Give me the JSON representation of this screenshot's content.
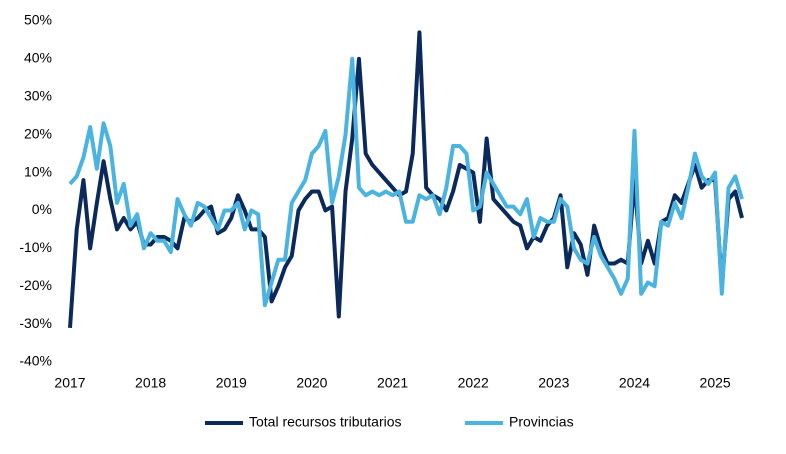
{
  "chart_data": {
    "type": "line",
    "categories": [
      "2017",
      null,
      null,
      null,
      null,
      null,
      null,
      null,
      null,
      null,
      null,
      null,
      "2018",
      null,
      null,
      null,
      null,
      null,
      null,
      null,
      null,
      null,
      null,
      null,
      "2019",
      null,
      null,
      null,
      null,
      null,
      null,
      null,
      null,
      null,
      null,
      null,
      "2020",
      null,
      null,
      null,
      null,
      null,
      null,
      null,
      null,
      null,
      null,
      null,
      "2021",
      null,
      null,
      null,
      null,
      null,
      null,
      null,
      null,
      null,
      null,
      null,
      "2022",
      null,
      null,
      null,
      null,
      null,
      null,
      null,
      null,
      null,
      null,
      null,
      "2023",
      null,
      null,
      null,
      null,
      null,
      null,
      null,
      null,
      null,
      null,
      null,
      "2024",
      null,
      null,
      null,
      null,
      null,
      null,
      null,
      null,
      null,
      null,
      null,
      "2025",
      null,
      null,
      null,
      null
    ],
    "series": [
      {
        "name": "Total recursos tributarios",
        "color": "#0b2a5b",
        "values": [
          -31,
          -5,
          8,
          -10,
          2,
          13,
          3,
          -5,
          -2,
          -5,
          -3,
          -9,
          -9,
          -7,
          -7,
          -8,
          -10,
          -2,
          -3,
          -2,
          0,
          1,
          -6,
          -5,
          -2,
          4,
          0,
          -5,
          -5,
          -7,
          -24,
          -20,
          -15,
          -12,
          0,
          3,
          5,
          5,
          0,
          1,
          -28,
          5,
          19,
          40,
          15,
          12,
          10,
          8,
          6,
          4,
          5,
          15,
          47,
          6,
          4,
          3,
          0,
          5,
          12,
          11,
          10,
          -3,
          19,
          3,
          1,
          -1,
          -3,
          -4,
          -10,
          -7,
          -8,
          -4,
          -2,
          4,
          -15,
          -6,
          -9,
          -17,
          -4,
          -10,
          -14,
          -14,
          -13,
          -14,
          8,
          -14,
          -8,
          -14,
          -3,
          -2,
          4,
          2,
          7,
          12,
          6,
          8,
          8,
          -20,
          3,
          5,
          -2
        ]
      },
      {
        "name": "Provincias",
        "color": "#4bb3e0",
        "values": [
          7,
          9,
          14,
          22,
          11,
          23,
          17,
          2,
          7,
          -4,
          -1,
          -10,
          -6,
          -8,
          -8,
          -11,
          3,
          -1,
          -4,
          2,
          1,
          -2,
          -5,
          0,
          0,
          2,
          -5,
          0,
          -1,
          -25,
          -19,
          -13,
          -13,
          2,
          5,
          8,
          15,
          17,
          21,
          2,
          9,
          20,
          40,
          6,
          4,
          5,
          4,
          5,
          4,
          5,
          -3,
          -3,
          4,
          3,
          4,
          -1,
          6,
          17,
          17,
          15,
          0,
          1,
          10,
          7,
          4,
          1,
          1,
          -1,
          3,
          -7,
          -2,
          -3,
          -3,
          3,
          1,
          -10,
          -13,
          -14,
          -7,
          -12,
          -15,
          -18,
          -22,
          -18,
          21,
          -22,
          -19,
          -20,
          -3,
          -4,
          2,
          -2,
          6,
          15,
          9,
          7,
          10,
          -22,
          6,
          9,
          3
        ]
      }
    ],
    "ylim": [
      -40,
      50
    ],
    "yticks": [
      {
        "value": -40,
        "label": "-40%"
      },
      {
        "value": -30,
        "label": "-30%"
      },
      {
        "value": -20,
        "label": "-20%"
      },
      {
        "value": -10,
        "label": "-10%"
      },
      {
        "value": 0,
        "label": "0%"
      },
      {
        "value": 10,
        "label": "10%"
      },
      {
        "value": 20,
        "label": "20%"
      },
      {
        "value": 30,
        "label": "30%"
      },
      {
        "value": 40,
        "label": "40%"
      },
      {
        "value": 50,
        "label": "50%"
      }
    ],
    "legend": "bottom"
  }
}
